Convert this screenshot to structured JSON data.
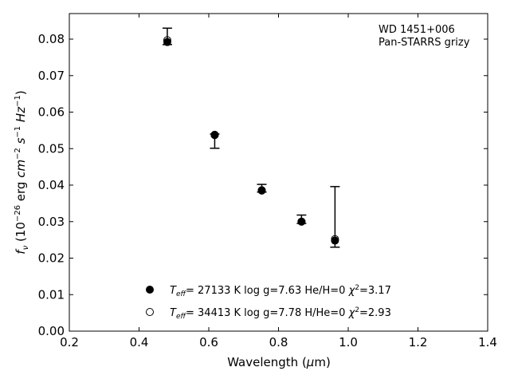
{
  "chart_data": {
    "type": "scatter",
    "xlabel": "Wavelength (μm)",
    "ylabel": "fν (10⁻²⁶ erg cm⁻² s⁻¹ Hz⁻¹)",
    "xlim": [
      0.2,
      1.4
    ],
    "ylim": [
      0.0,
      0.087
    ],
    "x_ticks": [
      0.2,
      0.4,
      0.6,
      0.8,
      1.0,
      1.2,
      1.4
    ],
    "x_tick_labels": [
      "0.2",
      "0.4",
      "0.6",
      "0.8",
      "1.0",
      "1.2",
      "1.4"
    ],
    "y_ticks": [
      0.0,
      0.01,
      0.02,
      0.03,
      0.04,
      0.05,
      0.06,
      0.07,
      0.08
    ],
    "y_tick_labels": [
      "0.00",
      "0.01",
      "0.02",
      "0.03",
      "0.04",
      "0.05",
      "0.06",
      "0.07",
      "0.08"
    ],
    "grid": false,
    "annotation": [
      "WD 1451+006",
      "Pan-STARRS grizy"
    ],
    "observed": {
      "x": [
        0.481,
        0.617,
        0.752,
        0.866,
        0.962
      ],
      "y": [
        0.0795,
        0.0535,
        0.0385,
        0.0303,
        0.025
      ],
      "yerr_low": [
        0.0785,
        0.0501,
        0.0381,
        0.0295,
        0.023
      ],
      "yerr_high": [
        0.083,
        0.054,
        0.0402,
        0.0318,
        0.0396
      ]
    },
    "series": [
      {
        "name": "Teff= 27133 K  log g=7.63  He/H=0  χ²=3.17",
        "marker": "filled-circle",
        "x": [
          0.481,
          0.617,
          0.752,
          0.866,
          0.962
        ],
        "y": [
          0.0792,
          0.0538,
          0.0386,
          0.03,
          0.0248
        ]
      },
      {
        "name": "Teff= 34413 K  log g=7.78  H/He=0  χ²=2.93",
        "marker": "open-circle",
        "x": [
          0.481,
          0.617,
          0.752,
          0.866,
          0.962
        ],
        "y": [
          0.0797,
          0.0537,
          0.0385,
          0.03,
          0.0252
        ]
      }
    ],
    "legend_position": "lower-center",
    "colors": {
      "marker": "#000000",
      "axis": "#000000",
      "background": "#ffffff"
    }
  }
}
